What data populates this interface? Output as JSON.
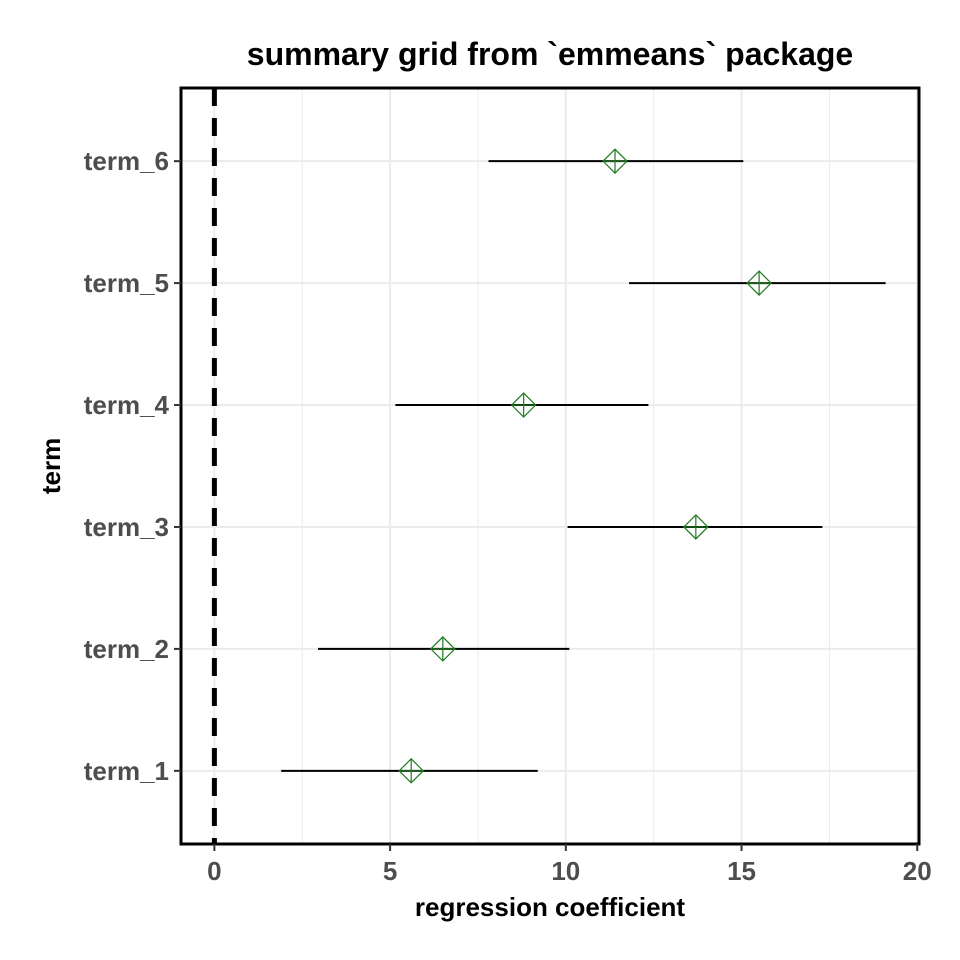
{
  "chart_data": {
    "type": "forest",
    "title": "summary grid from `emmeans` package",
    "xlabel": "regression coefficient",
    "ylabel": "term",
    "xlim": [
      -0.95,
      20.05
    ],
    "x_ticks": [
      0,
      5,
      10,
      15,
      20
    ],
    "grid": true,
    "reference_line": {
      "x": 0,
      "style": "dashed"
    },
    "point_shape": "crossed-diamond",
    "colors": {
      "point": "#1f7a1f",
      "interval": "#000000",
      "grid": "#ebebeb",
      "reference": "#000000",
      "panel_border": "#000000",
      "tick_label": "#4d4d4d"
    },
    "terms": [
      {
        "label": "term_1",
        "estimate": 5.6,
        "lower": 1.9,
        "upper": 9.2
      },
      {
        "label": "term_2",
        "estimate": 6.5,
        "lower": 2.95,
        "upper": 10.1
      },
      {
        "label": "term_3",
        "estimate": 13.7,
        "lower": 10.05,
        "upper": 17.3
      },
      {
        "label": "term_4",
        "estimate": 8.8,
        "lower": 5.15,
        "upper": 12.35
      },
      {
        "label": "term_5",
        "estimate": 15.5,
        "lower": 11.8,
        "upper": 19.1
      },
      {
        "label": "term_6",
        "estimate": 11.4,
        "lower": 7.8,
        "upper": 15.05
      }
    ]
  }
}
